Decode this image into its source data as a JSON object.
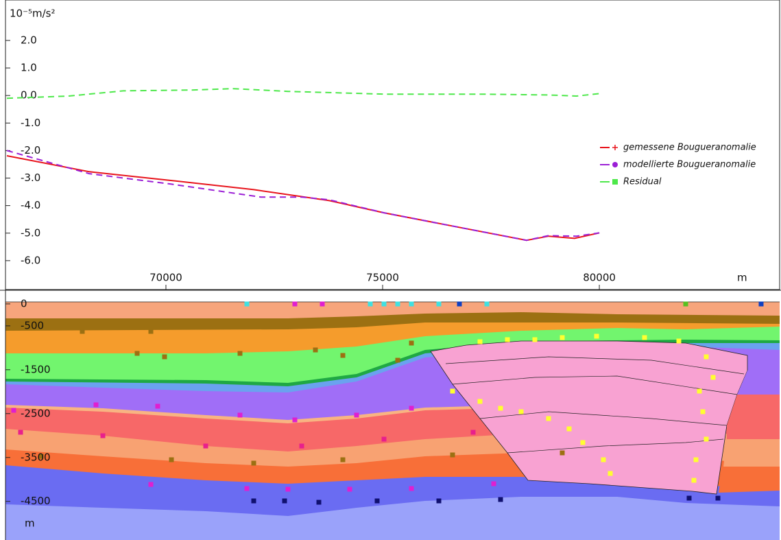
{
  "chart_data": [
    {
      "type": "line",
      "y_label": "10⁻⁵m/s²",
      "x_label": "m",
      "xlim": [
        66330,
        84160
      ],
      "ylim": [
        -7.05,
        3.27
      ],
      "xticks": [
        70000,
        75000,
        80000
      ],
      "yticks": [
        {
          "value": 2,
          "label": "2.0"
        },
        {
          "value": 1,
          "label": "1.0"
        },
        {
          "value": 0,
          "label": "0.0"
        },
        {
          "value": -1,
          "label": "-1.0"
        },
        {
          "value": -2,
          "label": "-2.0"
        },
        {
          "value": -3,
          "label": "-3.0"
        },
        {
          "value": -4,
          "label": "-4.0"
        },
        {
          "value": -5,
          "label": "-5.0"
        },
        {
          "value": -6,
          "label": "-6.0"
        }
      ],
      "legend": "right",
      "series": [
        {
          "name": "gemessene Bougueranomalie",
          "color": "#e8141c",
          "dash": false,
          "x": [
            66330,
            68230,
            70130,
            72030,
            73770,
            75030,
            76930,
            78320,
            78830,
            79430,
            80000
          ],
          "values": [
            -2.19,
            -2.77,
            -3.09,
            -3.42,
            -3.82,
            -4.26,
            -4.84,
            -5.26,
            -5.11,
            -5.19,
            -4.99
          ]
        },
        {
          "name": "modellierte Bougueranomalie",
          "color": "#9b1fd6",
          "dash": true,
          "x": [
            66330,
            68230,
            70130,
            72190,
            73140,
            73770,
            75030,
            76930,
            78320,
            78830,
            79470,
            80000
          ],
          "values": [
            -2.0,
            -2.84,
            -3.22,
            -3.69,
            -3.69,
            -3.79,
            -4.26,
            -4.84,
            -5.26,
            -5.09,
            -5.11,
            -4.99
          ]
        },
        {
          "name": "Residual",
          "color": "#4de84a",
          "dash": true,
          "x": [
            66330,
            67750,
            69020,
            70600,
            71550,
            72820,
            75030,
            77240,
            78830,
            79470,
            80000
          ],
          "values": [
            -0.1,
            -0.02,
            0.17,
            0.2,
            0.25,
            0.15,
            0.05,
            0.05,
            0.02,
            -0.02,
            0.07
          ]
        }
      ]
    },
    {
      "type": "section",
      "y_label": "m",
      "ylim": [
        -5380,
        280
      ],
      "yticks": [
        0,
        -500,
        -1500,
        -2500,
        -3500,
        -4500
      ]
    }
  ]
}
